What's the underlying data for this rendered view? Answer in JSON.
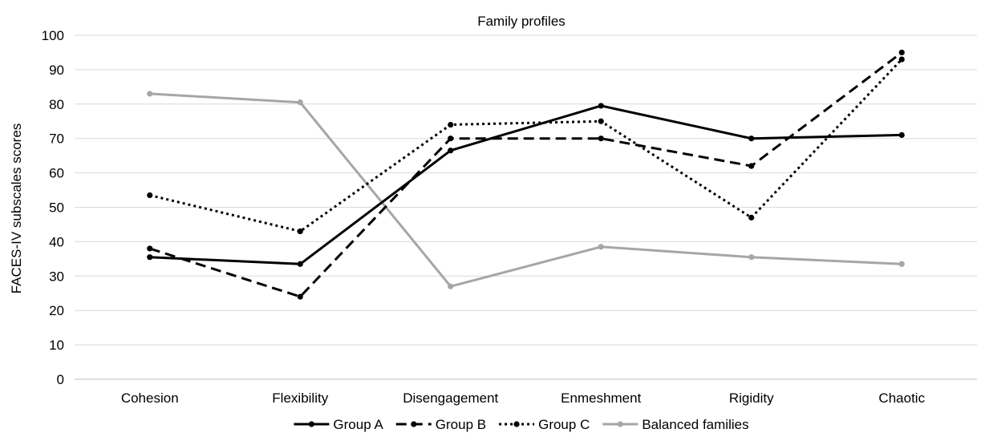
{
  "chart_data": {
    "type": "line",
    "title": "Family profiles",
    "xlabel": "",
    "ylabel": "FACES-IV subscales scores",
    "ylim": [
      0,
      100
    ],
    "yticks": [
      0,
      10,
      20,
      30,
      40,
      50,
      60,
      70,
      80,
      90,
      100
    ],
    "grid": true,
    "legend_position": "bottom",
    "categories": [
      "Cohesion",
      "Flexibility",
      "Disengagement",
      "Enmeshment",
      "Rigidity",
      "Chaotic"
    ],
    "series": [
      {
        "name": "Group A",
        "values": [
          35.5,
          33.5,
          66.5,
          79.5,
          70,
          71
        ],
        "color": "#000000",
        "style": "solid"
      },
      {
        "name": "Group B",
        "values": [
          38,
          24,
          70,
          70,
          62,
          95
        ],
        "color": "#000000",
        "style": "dashed"
      },
      {
        "name": "Group C",
        "values": [
          53.5,
          43,
          74,
          75,
          47,
          93
        ],
        "color": "#000000",
        "style": "dotted"
      },
      {
        "name": "Balanced families",
        "values": [
          83,
          80.5,
          27,
          38.5,
          35.5,
          33.5
        ],
        "color": "#a6a6a6",
        "style": "solid"
      }
    ]
  }
}
